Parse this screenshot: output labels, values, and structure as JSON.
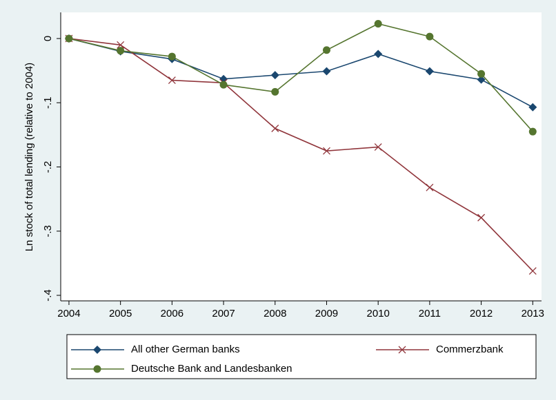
{
  "chart_data": {
    "type": "line",
    "y_label": "Ln stock of total lending (relative to 2004)",
    "x": [
      2004,
      2005,
      2006,
      2007,
      2008,
      2009,
      2010,
      2011,
      2012,
      2013
    ],
    "xlim": [
      2003.84,
      2013.17
    ],
    "xticks": [
      2004,
      2005,
      2006,
      2007,
      2008,
      2009,
      2010,
      2011,
      2012,
      2013
    ],
    "ylim": [
      -0.4086,
      0.0407
    ],
    "yticks": [
      0,
      {
        "value": -0.1,
        "label": "-.1"
      },
      {
        "value": -0.2,
        "label": "-.2"
      },
      {
        "value": -0.3,
        "label": "-.3"
      },
      {
        "value": -0.4,
        "label": "-.4"
      }
    ],
    "legend": "bottom",
    "series": [
      {
        "name": "All other German banks",
        "color": "#1a476f",
        "marker": "diamond",
        "values": [
          0,
          -0.02,
          -0.032,
          -0.063,
          -0.057,
          -0.051,
          -0.024,
          -0.051,
          -0.064,
          -0.107
        ]
      },
      {
        "name": "Commerzbank",
        "color": "#90353b",
        "marker": "x",
        "values": [
          0,
          -0.01,
          -0.065,
          -0.069,
          -0.14,
          -0.175,
          -0.169,
          -0.232,
          -0.279,
          -0.362
        ]
      },
      {
        "name": "Deutsche Bank and Landesbanken",
        "color": "#55752f",
        "marker": "circle",
        "values": [
          0,
          -0.019,
          -0.028,
          -0.072,
          -0.083,
          -0.018,
          0.023,
          0.003,
          -0.055,
          -0.145
        ]
      }
    ]
  }
}
